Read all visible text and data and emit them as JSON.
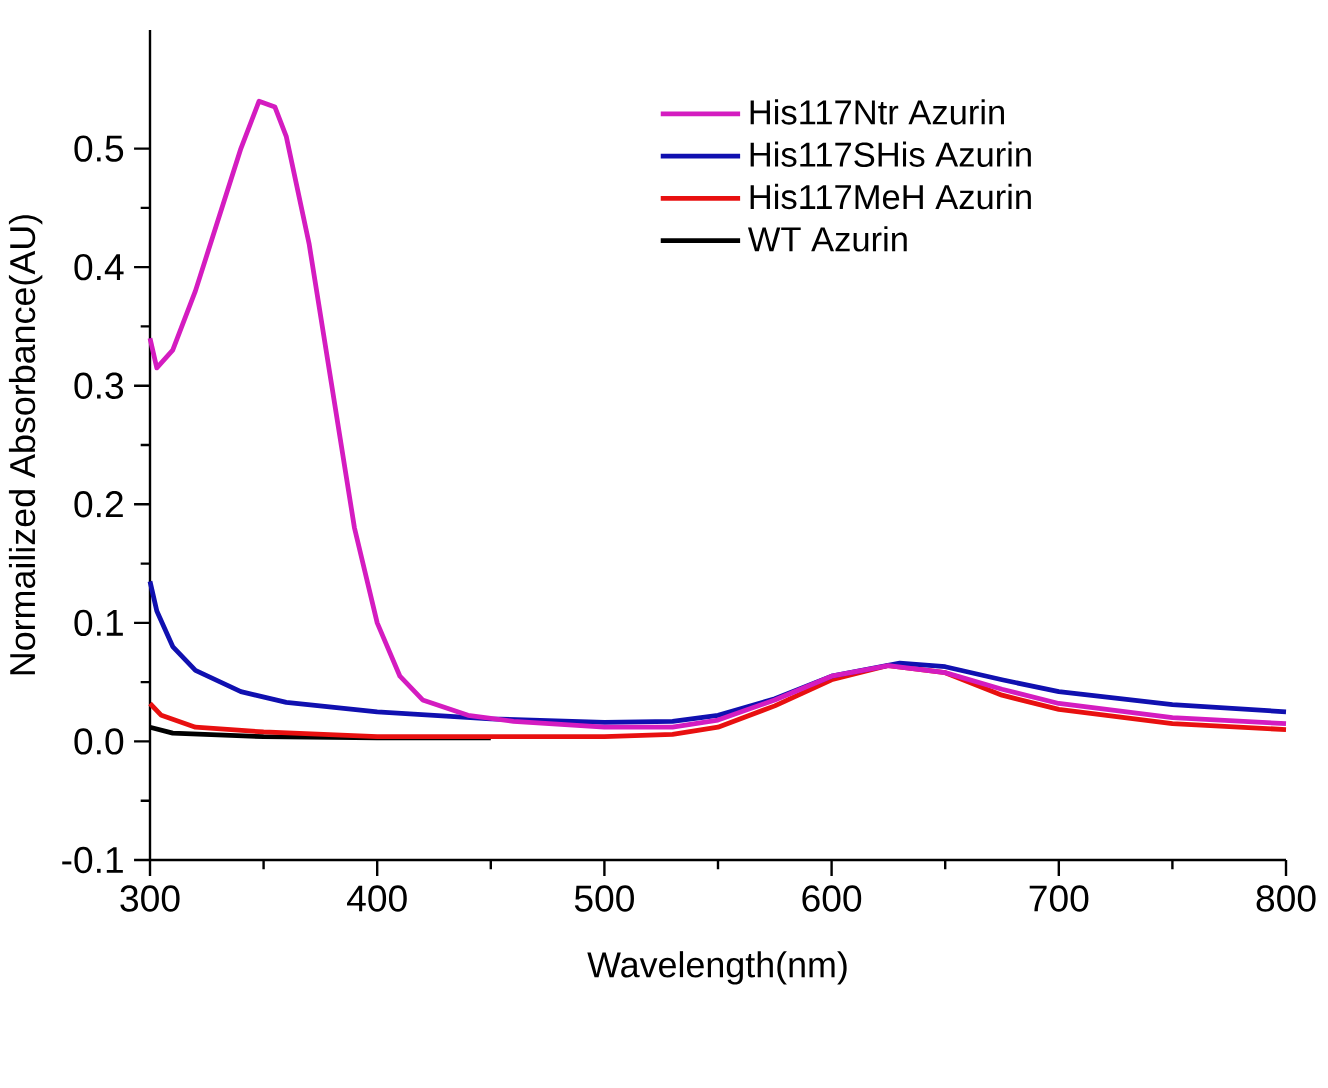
{
  "chart_data": {
    "type": "line",
    "xlabel": "Wavelength(nm)",
    "ylabel": "Normailized Absorbance(AU)",
    "xlim": [
      300,
      800
    ],
    "ylim": [
      -0.1,
      0.6
    ],
    "xticks": [
      300,
      400,
      500,
      600,
      700,
      800
    ],
    "yticks": [
      -0.1,
      {
        "value": 0,
        "label": "0.0"
      },
      0.1,
      0.2,
      0.3,
      0.4,
      0.5
    ],
    "legend": "top right",
    "grid": false,
    "marker": "none",
    "line_style": "solid",
    "series": [
      {
        "name": "His117Ntr Azurin",
        "color": "#d41cc0",
        "x": [
          300,
          303,
          310,
          320,
          330,
          340,
          348,
          355,
          360,
          370,
          380,
          390,
          400,
          410,
          420,
          440,
          460,
          500,
          530,
          550,
          575,
          600,
          625,
          650,
          675,
          700,
          750,
          800
        ],
        "values": [
          0.34,
          0.315,
          0.33,
          0.38,
          0.44,
          0.5,
          0.54,
          0.535,
          0.51,
          0.42,
          0.3,
          0.18,
          0.1,
          0.055,
          0.035,
          0.022,
          0.017,
          0.012,
          0.012,
          0.018,
          0.035,
          0.055,
          0.064,
          0.058,
          0.044,
          0.032,
          0.02,
          0.015
        ]
      },
      {
        "name": "His117SHis Azurin",
        "color": "#1010b0",
        "x": [
          300,
          303,
          310,
          320,
          340,
          360,
          400,
          450,
          500,
          530,
          550,
          575,
          600,
          630,
          650,
          675,
          700,
          750,
          800
        ],
        "values": [
          0.135,
          0.11,
          0.08,
          0.06,
          0.042,
          0.033,
          0.025,
          0.019,
          0.016,
          0.017,
          0.022,
          0.036,
          0.055,
          0.066,
          0.063,
          0.052,
          0.042,
          0.031,
          0.025
        ]
      },
      {
        "name": "His117MeH Azurin",
        "color": "#e81010",
        "x": [
          300,
          305,
          320,
          350,
          400,
          500,
          530,
          550,
          575,
          600,
          625,
          650,
          675,
          700,
          750,
          800
        ],
        "values": [
          0.032,
          0.022,
          0.012,
          0.008,
          0.004,
          0.004,
          0.006,
          0.012,
          0.03,
          0.052,
          0.064,
          0.058,
          0.039,
          0.027,
          0.015,
          0.01
        ]
      },
      {
        "name": "WT Azurin",
        "color": "#000000",
        "x": [
          300,
          310,
          350,
          400,
          450
        ],
        "values": [
          0.012,
          0.007,
          0.004,
          0.003,
          0.003
        ]
      }
    ]
  }
}
